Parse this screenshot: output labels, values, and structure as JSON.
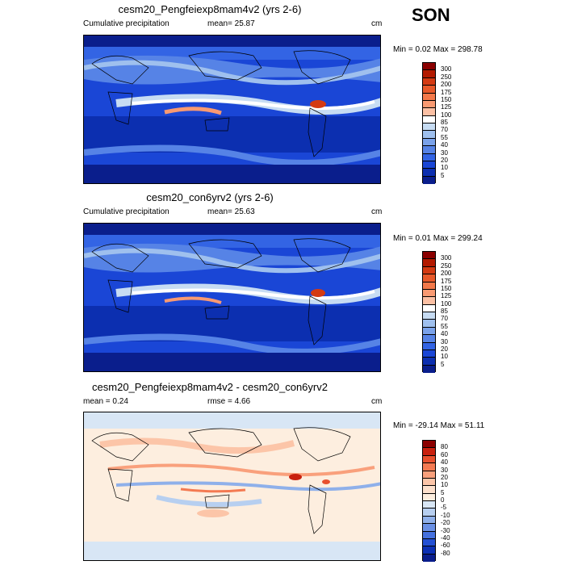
{
  "season": "SON",
  "panels": [
    {
      "title": "cesm20_Pengfeiexp8mam4v2 (yrs 2-6)",
      "left_label": "Cumulative precipitation",
      "mean_label": "mean=  25.87",
      "units": "cm",
      "minmax": "Min =  0.02 Max = 298.78",
      "levels": [
        "300",
        "250",
        "200",
        "175",
        "150",
        "125",
        "100",
        "85",
        "70",
        "55",
        "40",
        "30",
        "20",
        "10",
        "5"
      ],
      "colors": [
        "#8b0000",
        "#b31a00",
        "#d43a12",
        "#e8592a",
        "#f4794a",
        "#f99a72",
        "#fbc0a4",
        "#ffffff",
        "#c7dcf3",
        "#9fc0ee",
        "#7aa2ea",
        "#5683e6",
        "#3364e4",
        "#1a46d6",
        "#0c2fb0",
        "#0a1e8c"
      ]
    },
    {
      "title": "cesm20_con6yrv2 (yrs 2-6)",
      "left_label": "Cumulative precipitation",
      "mean_label": "mean=  25.63",
      "units": "cm",
      "minmax": "Min =  0.01 Max = 299.24",
      "levels": [
        "300",
        "250",
        "200",
        "175",
        "150",
        "125",
        "100",
        "85",
        "70",
        "55",
        "40",
        "30",
        "20",
        "10",
        "5"
      ],
      "colors": [
        "#8b0000",
        "#b31a00",
        "#d43a12",
        "#e8592a",
        "#f4794a",
        "#f99a72",
        "#fbc0a4",
        "#ffffff",
        "#c7dcf3",
        "#9fc0ee",
        "#7aa2ea",
        "#5683e6",
        "#3364e4",
        "#1a46d6",
        "#0c2fb0",
        "#0a1e8c"
      ]
    },
    {
      "title": "cesm20_Pengfeiexp8mam4v2 - cesm20_con6yrv2",
      "left_label": "mean =   0.24",
      "mean_label": "rmse =   4.66",
      "units": "cm",
      "minmax": "Min = -29.14 Max =  51.11",
      "levels": [
        "80",
        "60",
        "40",
        "30",
        "20",
        "10",
        "5",
        "0",
        "-5",
        "-10",
        "-20",
        "-30",
        "-40",
        "-60",
        "-80"
      ],
      "colors": [
        "#8b0000",
        "#c8200e",
        "#e8502e",
        "#f47a52",
        "#f9a07c",
        "#fcc5a8",
        "#fde0cc",
        "#fdeedf",
        "#d8e6f5",
        "#b7cff0",
        "#8fb0ea",
        "#6a90e5",
        "#4571df",
        "#2350d4",
        "#0c30b4",
        "#0a1e8c"
      ]
    }
  ]
}
